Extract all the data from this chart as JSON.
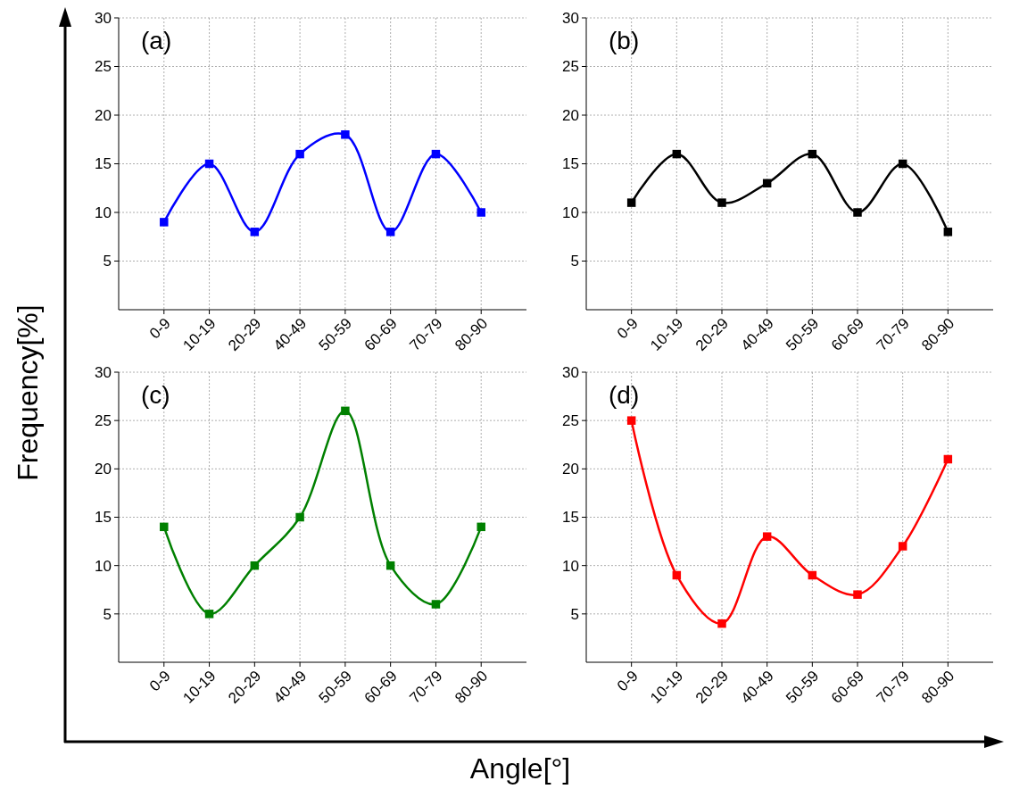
{
  "chart_data": [
    {
      "type": "line",
      "categories": [
        "0-9",
        "10-19",
        "20-29",
        "40-49",
        "50-59",
        "60-69",
        "70-79",
        "80-90"
      ],
      "series": [
        {
          "color": "#0000ff",
          "values": [
            9,
            15,
            8,
            16,
            18,
            8,
            16,
            10
          ]
        }
      ],
      "ylim": [
        0,
        30
      ],
      "yticks": [
        5,
        10,
        15,
        20,
        25,
        30
      ],
      "grid": true,
      "marker": "square",
      "annotations": [
        "(a)"
      ],
      "ylabel": "Frequency[%]"
    },
    {
      "type": "line",
      "categories": [
        "0-9",
        "10-19",
        "20-29",
        "40-49",
        "50-59",
        "60-69",
        "70-79",
        "80-90"
      ],
      "series": [
        {
          "color": "#000000",
          "values": [
            11,
            16,
            11,
            13,
            16,
            10,
            15,
            8
          ]
        }
      ],
      "ylim": [
        0,
        30
      ],
      "yticks": [
        5,
        10,
        15,
        20,
        25,
        30
      ],
      "grid": true,
      "marker": "square",
      "annotations": [
        "(b)"
      ]
    },
    {
      "type": "line",
      "categories": [
        "0-9",
        "10-19",
        "20-29",
        "40-49",
        "50-59",
        "60-69",
        "70-79",
        "80-90"
      ],
      "series": [
        {
          "color": "#008000",
          "values": [
            14,
            5,
            10,
            15,
            26,
            10,
            6,
            14
          ]
        }
      ],
      "ylim": [
        0,
        30
      ],
      "yticks": [
        5,
        10,
        15,
        20,
        25,
        30
      ],
      "grid": true,
      "marker": "square",
      "annotations": [
        "(c)"
      ],
      "xlabel": "Angle[°]"
    },
    {
      "type": "line",
      "categories": [
        "0-9",
        "10-19",
        "20-29",
        "40-49",
        "50-59",
        "60-69",
        "70-79",
        "80-90"
      ],
      "series": [
        {
          "color": "#ff0000",
          "values": [
            25,
            9,
            4,
            13,
            9,
            7,
            12,
            21
          ]
        }
      ],
      "ylim": [
        0,
        30
      ],
      "yticks": [
        5,
        10,
        15,
        20,
        25,
        30
      ],
      "grid": true,
      "marker": "square",
      "annotations": [
        "(d)"
      ]
    }
  ]
}
